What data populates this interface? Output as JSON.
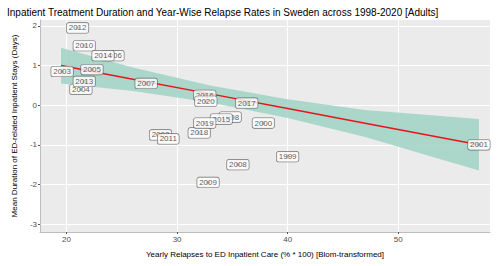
{
  "chart_data": {
    "type": "scatter",
    "title": "Inpatient Treatment Duration and Year-Wise Relapse Rates in Sweden across 1998-2020 [Adults]",
    "x_label": "Yearly Relapses to ED Inpatient Care (% * 100) [Blom-transformed]",
    "y_label": "Mean Duration of ED-related Inpatient Stays (Days)",
    "point_labels": [
      "1998",
      "1999",
      "2000",
      "2001",
      "2002",
      "2003",
      "2004",
      "2005",
      "2006",
      "2007",
      "2008",
      "2009",
      "2010",
      "2011",
      "2012",
      "2013",
      "2014",
      "2015",
      "2016",
      "2017",
      "2018",
      "2019",
      "2020"
    ],
    "x": [
      34.8,
      40.0,
      37.8,
      57.3,
      28.5,
      19.6,
      21.3,
      22.3,
      24.2,
      27.2,
      35.5,
      32.8,
      21.6,
      29.2,
      21.0,
      21.6,
      23.3,
      34.0,
      32.5,
      36.3,
      32.0,
      32.5,
      32.6
    ],
    "values": [
      -0.3,
      -1.3,
      -0.45,
      -1.0,
      -0.75,
      0.85,
      0.4,
      0.9,
      1.25,
      0.55,
      -1.5,
      -1.95,
      1.5,
      -0.85,
      1.95,
      0.6,
      1.25,
      -0.35,
      0.25,
      0.05,
      -0.7,
      -0.45,
      0.1
    ],
    "color": "#000000",
    "fit": {
      "x": [
        19.5,
        26,
        33,
        40,
        47,
        57.3
      ],
      "y": [
        1.0,
        0.656,
        0.286,
        -0.085,
        -0.455,
        -1.0
      ],
      "lower": [
        0.55,
        0.36,
        0.07,
        -0.32,
        -0.8,
        -1.65
      ],
      "upper": [
        1.45,
        0.95,
        0.5,
        0.15,
        -0.12,
        -0.35
      ],
      "color": "#e8151b",
      "band_color": "#9fd4c4"
    },
    "xlim": [
      17.6,
      58.3
    ],
    "xticks": [
      20,
      30,
      40,
      50
    ],
    "ylim": [
      -3.2,
      2.15
    ],
    "yticks": [
      -3,
      -2,
      -1,
      0,
      1,
      2
    ],
    "grid": true
  }
}
